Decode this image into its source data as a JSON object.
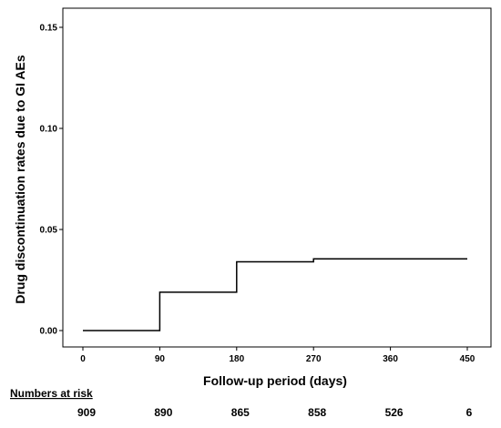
{
  "chart_data": {
    "type": "line",
    "step": true,
    "title": "",
    "xlabel": "Follow-up period (days)",
    "ylabel": "Drug discontinuation rates due to GI AEs",
    "xlim": [
      0,
      450
    ],
    "ylim": [
      0,
      0.15
    ],
    "x_ticks": [
      0,
      90,
      180,
      270,
      360,
      450
    ],
    "x_tick_labels": [
      "0",
      "90",
      "180",
      "270",
      "360",
      "450"
    ],
    "y_ticks": [
      0.0,
      0.05,
      0.1,
      0.15
    ],
    "y_tick_labels": [
      "0.00",
      "0.05",
      "0.10",
      "0.15"
    ],
    "grid": false,
    "series": [
      {
        "x": [
          0,
          90,
          180,
          270,
          450
        ],
        "y": [
          0.0,
          0.019,
          0.034,
          0.0355,
          0.0355
        ]
      }
    ],
    "risk_table": {
      "title": "Numbers at risk",
      "values": [
        "909",
        "890",
        "865",
        "858",
        "526",
        "6"
      ]
    }
  }
}
